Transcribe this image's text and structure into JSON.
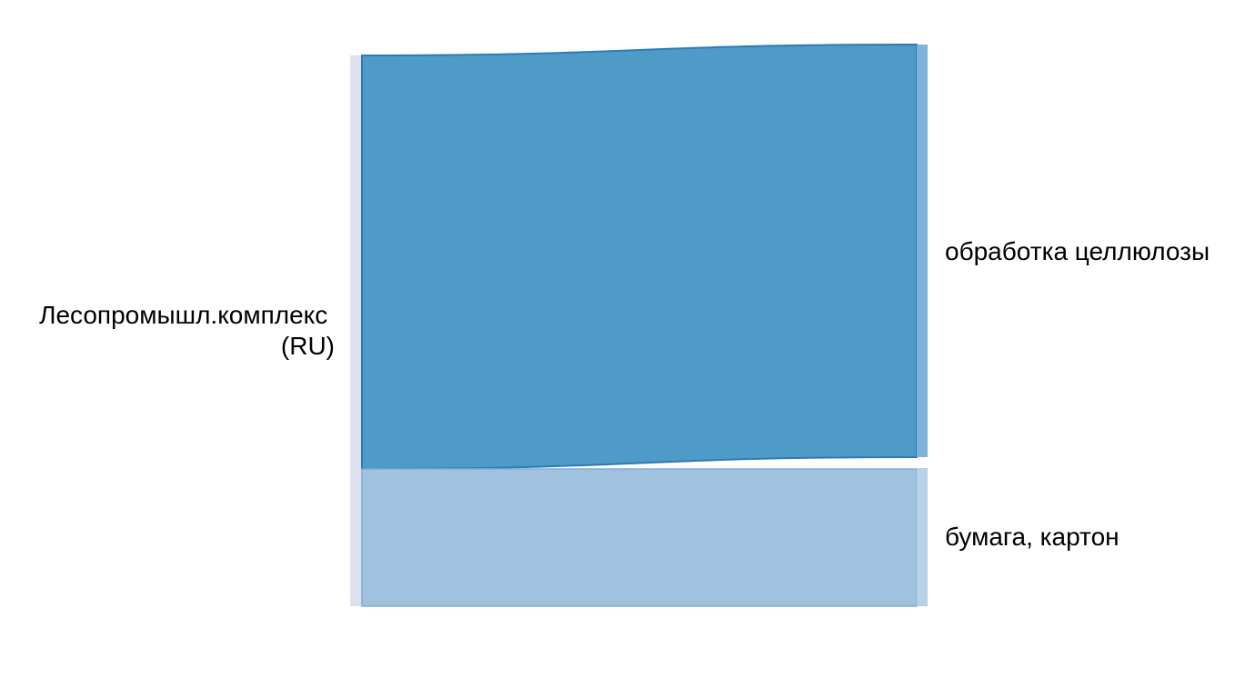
{
  "diagram": {
    "type": "sankey",
    "nodes": [
      {
        "id": "source",
        "label_lines": [
          "Лесопромышл.комплекс",
          "(RU)"
        ]
      },
      {
        "id": "pulp",
        "label_lines": [
          "обработка целлюлозы"
        ]
      },
      {
        "id": "paper",
        "label_lines": [
          "бумага, картон"
        ]
      }
    ],
    "links": [
      {
        "source": "source",
        "target": "pulp",
        "share": 0.75
      },
      {
        "source": "source",
        "target": "paper",
        "share": 0.25
      }
    ],
    "colors": {
      "source_node": "#dde0ee",
      "flow_main": "#4f9bc8",
      "flow_main_stroke": "#2b7bb6",
      "flow_secondary": "#a0c2de",
      "flow_secondary_stroke": "#80aed6",
      "target_main": "#7fb3da",
      "target_secondary": "#b7d1e8"
    }
  }
}
